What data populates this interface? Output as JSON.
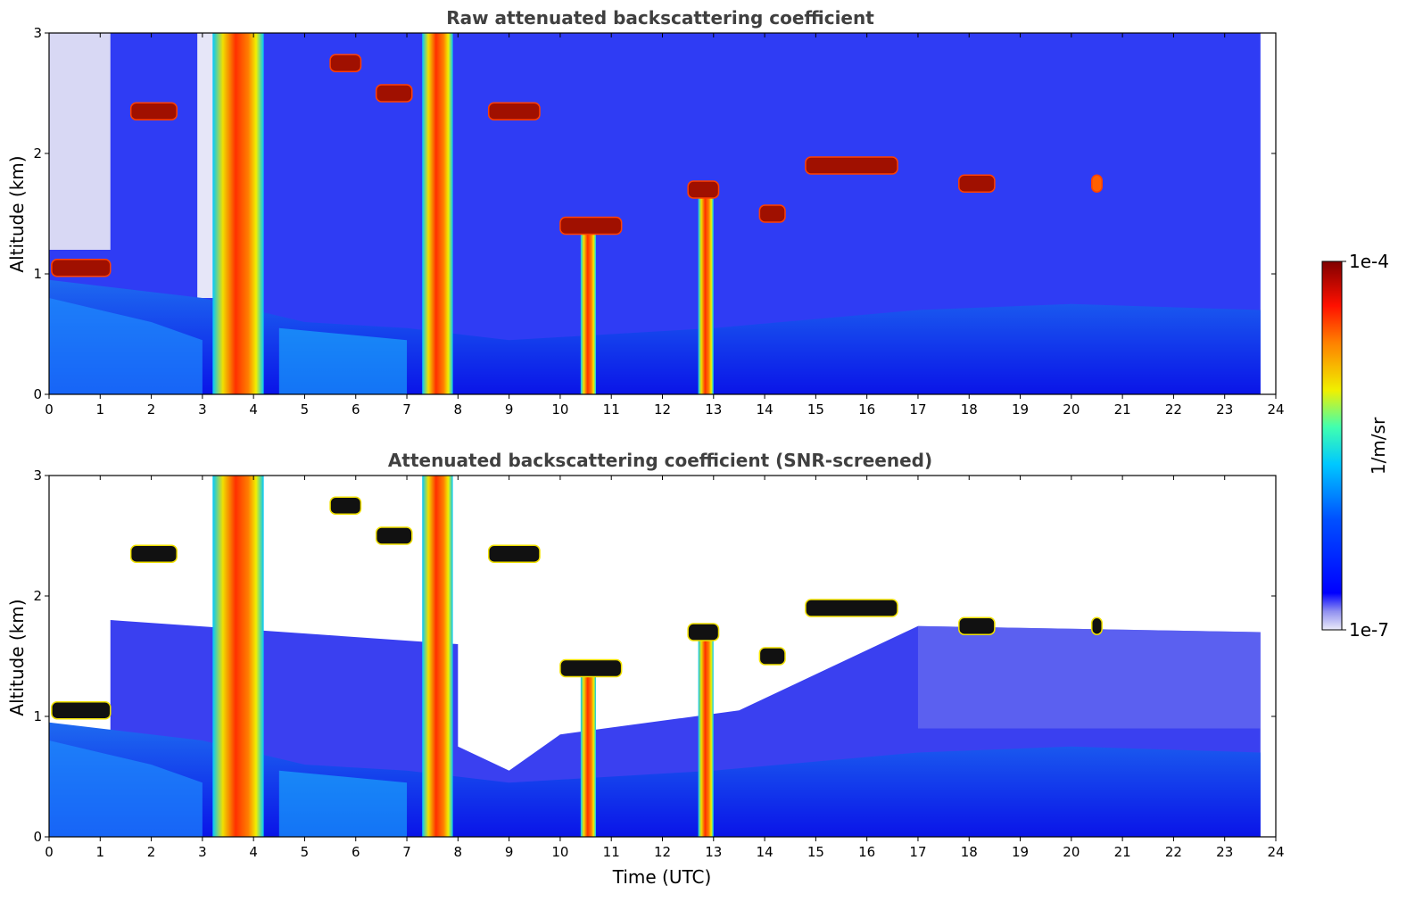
{
  "chart_data": [
    {
      "type": "heatmap",
      "title": "Raw attenuated backscattering coefficient",
      "xlabel": "",
      "ylabel": "Altitude (km)",
      "xlim": [
        0,
        24
      ],
      "ylim": [
        0,
        3
      ],
      "x_ticks": [
        "0",
        "1",
        "2",
        "3",
        "4",
        "5",
        "6",
        "7",
        "8",
        "9",
        "10",
        "11",
        "12",
        "13",
        "14",
        "15",
        "16",
        "17",
        "18",
        "19",
        "20",
        "21",
        "22",
        "23",
        "24"
      ],
      "y_ticks": [
        "0",
        "1",
        "2",
        "3"
      ],
      "data_end_time": 23.7,
      "cloud_layers": [
        {
          "t0": 0.05,
          "t1": 1.2,
          "alt": 1.05,
          "intensity": "high"
        },
        {
          "t0": 1.6,
          "t1": 2.5,
          "alt": 2.35,
          "intensity": "high"
        },
        {
          "t0": 5.5,
          "t1": 6.1,
          "alt": 2.75,
          "intensity": "high"
        },
        {
          "t0": 6.4,
          "t1": 7.1,
          "alt": 2.5,
          "intensity": "high"
        },
        {
          "t0": 8.6,
          "t1": 9.6,
          "alt": 2.35,
          "intensity": "high"
        },
        {
          "t0": 10.0,
          "t1": 11.2,
          "alt": 1.4,
          "intensity": "high"
        },
        {
          "t0": 12.5,
          "t1": 13.1,
          "alt": 1.7,
          "intensity": "high"
        },
        {
          "t0": 13.9,
          "t1": 14.4,
          "alt": 1.5,
          "intensity": "high"
        },
        {
          "t0": 14.8,
          "t1": 16.6,
          "alt": 1.9,
          "intensity": "high"
        },
        {
          "t0": 17.8,
          "t1": 18.5,
          "alt": 1.75,
          "intensity": "high"
        },
        {
          "t0": 20.4,
          "t1": 20.6,
          "alt": 1.75,
          "intensity": "medium"
        }
      ],
      "precipitation_columns": [
        {
          "t0": 3.2,
          "t1": 4.2,
          "alt_top": 3.0
        },
        {
          "t0": 7.3,
          "t1": 7.9,
          "alt_top": 3.0
        },
        {
          "t0": 10.4,
          "t1": 10.7,
          "alt_top": 1.4
        },
        {
          "t0": 12.7,
          "t1": 13.0,
          "alt_top": 1.7
        }
      ]
    },
    {
      "type": "heatmap",
      "title": "Attenuated backscattering coefficient (SNR-screened)",
      "xlabel": "Time (UTC)",
      "ylabel": "Altitude (km)",
      "xlim": [
        0,
        24
      ],
      "ylim": [
        0,
        3
      ],
      "x_ticks": [
        "0",
        "1",
        "2",
        "3",
        "4",
        "5",
        "6",
        "7",
        "8",
        "9",
        "10",
        "11",
        "12",
        "13",
        "14",
        "15",
        "16",
        "17",
        "18",
        "19",
        "20",
        "21",
        "22",
        "23",
        "24"
      ],
      "y_ticks": [
        "0",
        "1",
        "2",
        "3"
      ],
      "data_end_time": 23.7,
      "screened": true
    }
  ],
  "colorbar": {
    "label": "1/m/sr",
    "max_label": "1e-4",
    "min_label": "1e-7",
    "colormap": "jet",
    "colors": [
      "#ececf8",
      "#0000ff",
      "#00c8ff",
      "#f0e000",
      "#ff4000",
      "#800000"
    ]
  }
}
